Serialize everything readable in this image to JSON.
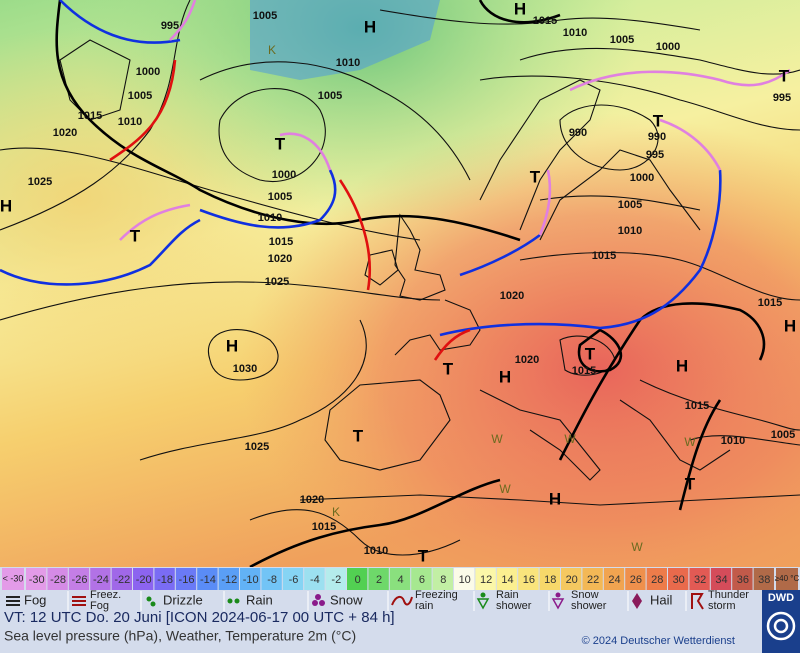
{
  "map": {
    "pressure_centers": [
      "H",
      "H",
      "T",
      "T",
      "H",
      "T",
      "T",
      "H",
      "T",
      "T",
      "H",
      "T",
      "H",
      "H",
      "H",
      "T",
      "T",
      "T"
    ],
    "isobar_labels": [
      1005,
      995,
      1015,
      1010,
      1005,
      1000,
      1010,
      1000,
      1005,
      1005,
      1015,
      1010,
      1020,
      990,
      990,
      995,
      1000,
      1000,
      1025,
      1005,
      1005,
      1010,
      1010,
      1015,
      1020,
      1015,
      1025,
      1020,
      1015,
      1020,
      1015,
      1030,
      1015,
      1005,
      1010,
      1025,
      1020,
      1015,
      1010,
      995
    ],
    "temperature_letters": [
      "K",
      "K",
      "W",
      "W",
      "W",
      "W",
      "W"
    ]
  },
  "legend": {
    "low_label": "< -30",
    "scale_values": [
      -30,
      -28,
      -26,
      -24,
      -22,
      -20,
      -18,
      -16,
      -14,
      -12,
      -10,
      -8,
      -6,
      -4,
      -2,
      0,
      2,
      4,
      6,
      8,
      10,
      12,
      14,
      16,
      18,
      20,
      22,
      24,
      26,
      28,
      30,
      32,
      34,
      36,
      38
    ],
    "scale_colors": [
      "#e39be8",
      "#d58be6",
      "#c47ee6",
      "#b272e6",
      "#a068e8",
      "#8c64f0",
      "#7a6cf4",
      "#6a7af6",
      "#5a8cf6",
      "#5a9ef6",
      "#62b2f6",
      "#72c4f6",
      "#86d4f4",
      "#9ce0f0",
      "#b4ecec",
      "#52d052",
      "#6ed86a",
      "#8ae07e",
      "#a6e890",
      "#c2efa4",
      "#fbfbe8",
      "#fbf7a8",
      "#fbef90",
      "#f9e47c",
      "#f7d86a",
      "#f5c860",
      "#f3b856",
      "#f1a450",
      "#ef904c",
      "#ed7c4a",
      "#e96a4c",
      "#e25a54",
      "#d44c5a",
      "#c25a4a",
      "#b06a48"
    ],
    "high_label": "≥40 °C",
    "weather": [
      {
        "lines": [
          "Fog"
        ]
      },
      {
        "lines": [
          "Freez.",
          "Fog"
        ]
      },
      {
        "lines": [
          "Drizzle"
        ]
      },
      {
        "lines": [
          "Rain"
        ]
      },
      {
        "lines": [
          "Snow"
        ]
      },
      {
        "lines": [
          "Freezing",
          "rain"
        ]
      },
      {
        "lines": [
          "Rain",
          "shower"
        ]
      },
      {
        "lines": [
          "Snow",
          "shower"
        ]
      },
      {
        "lines": [
          "Hail"
        ]
      },
      {
        "lines": [
          "Thunder",
          "storm"
        ]
      }
    ],
    "logo": "DWD"
  },
  "footer": {
    "valid_time": "VT: 12 UTC Do.  20 Juni [ICON 2024-06-17  00 UTC + 84 h]",
    "description": "Sea level pressure (hPa), Weather, Temperature 2m (°C)",
    "copyright": "© 2024 Deutscher Wetterdienst"
  }
}
